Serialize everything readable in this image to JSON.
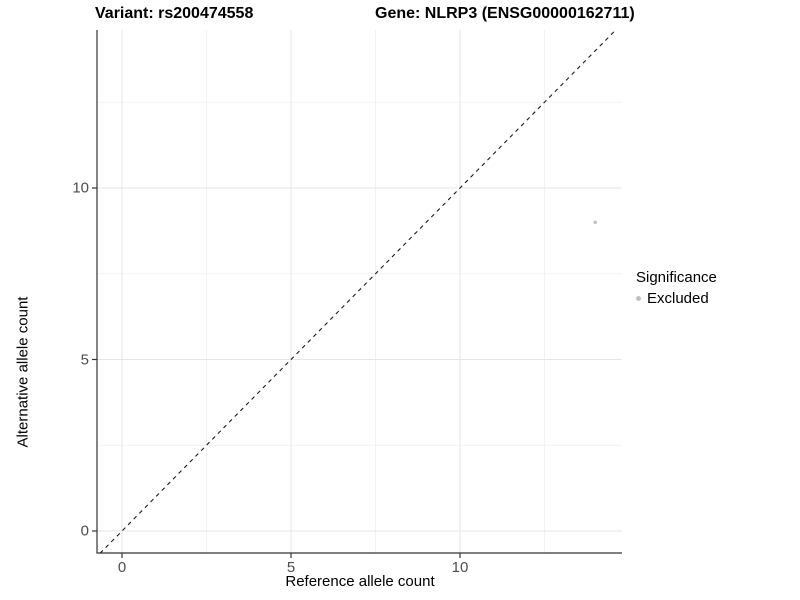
{
  "titles": {
    "variant": "Variant: rs200474558",
    "gene": "Gene: NLRP3 (ENSG00000162711)"
  },
  "axes": {
    "x_label": "Reference allele count",
    "y_label": "Alternative allele count",
    "x_ticks": [
      "0",
      "5",
      "10"
    ],
    "y_ticks": [
      "0",
      "5",
      "10"
    ]
  },
  "legend": {
    "title": "Significance",
    "items": [
      {
        "label": "Excluded",
        "color": "#c2c2c2"
      }
    ]
  },
  "colors": {
    "axis_line": "#333333",
    "tick_mark": "#333333",
    "tick_label": "#4d4d4d",
    "grid_major": "#e6e6e6",
    "grid_minor": "#f2f2f2",
    "reference_line": "#1a1a1a",
    "point": "#c2c2c2",
    "background": "#ffffff"
  },
  "chart_data": {
    "type": "scatter",
    "title": "Variant: rs200474558   Gene: NLRP3 (ENSG00000162711)",
    "xlabel": "Reference allele count",
    "ylabel": "Alternative allele count",
    "xlim": [
      -0.74,
      14.8
    ],
    "ylim": [
      -0.65,
      14.6
    ],
    "x_ticks": [
      0,
      5,
      10
    ],
    "y_ticks": [
      0,
      5,
      10
    ],
    "grid_major_interval": 5,
    "grid_minor_interval": 2.5,
    "grid": true,
    "series": [
      {
        "name": "Excluded",
        "points": [
          {
            "x": 14,
            "y": 9
          }
        ],
        "color": "#c2c2c2",
        "point_radius": 1.8
      }
    ],
    "reference_line": {
      "type": "identity",
      "equation": "y = x",
      "style": "dashed",
      "color": "#1a1a1a"
    },
    "legend": {
      "title": "Significance",
      "position": "right",
      "entries": [
        "Excluded"
      ]
    }
  }
}
